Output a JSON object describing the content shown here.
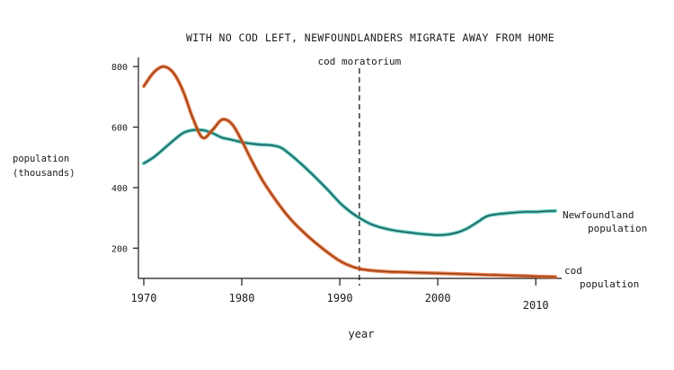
{
  "chart_data": {
    "type": "line",
    "title": "WITH NO COD LEFT, NEWFOUNDLANDERS MIGRATE AWAY FROM HOME",
    "xlabel": "year",
    "ylabel_lines": [
      "population",
      "(thousands)"
    ],
    "xlim": [
      1970,
      2012
    ],
    "ylim": [
      100,
      830
    ],
    "x_ticks": [
      {
        "value": 1970,
        "label": "1970"
      },
      {
        "value": 1980,
        "label": "1980"
      },
      {
        "value": 1990,
        "label": "1990"
      },
      {
        "value": 2000,
        "label": "2000"
      },
      {
        "value": 2010,
        "label": "2010"
      }
    ],
    "y_ticks": [
      {
        "value": 200,
        "label": "200"
      },
      {
        "value": 400,
        "label": "400"
      },
      {
        "value": 600,
        "label": "600"
      },
      {
        "value": 800,
        "label": "800"
      }
    ],
    "grid": false,
    "annotation": {
      "label": "cod moratorium",
      "x": 1992
    },
    "series": [
      {
        "label_lines": [
          "Newfoundland",
          "population"
        ],
        "color": "#3fbfae",
        "points": [
          [
            1970,
            480
          ],
          [
            1971,
            500
          ],
          [
            1972,
            527
          ],
          [
            1973,
            555
          ],
          [
            1974,
            580
          ],
          [
            1975,
            590
          ],
          [
            1976,
            590
          ],
          [
            1977,
            580
          ],
          [
            1978,
            565
          ],
          [
            1979,
            558
          ],
          [
            1980,
            550
          ],
          [
            1981,
            545
          ],
          [
            1982,
            542
          ],
          [
            1983,
            540
          ],
          [
            1984,
            532
          ],
          [
            1985,
            508
          ],
          [
            1986,
            480
          ],
          [
            1987,
            450
          ],
          [
            1988,
            418
          ],
          [
            1989,
            385
          ],
          [
            1990,
            350
          ],
          [
            1991,
            322
          ],
          [
            1992,
            300
          ],
          [
            1993,
            282
          ],
          [
            1994,
            270
          ],
          [
            1995,
            262
          ],
          [
            1996,
            256
          ],
          [
            1997,
            252
          ],
          [
            1998,
            248
          ],
          [
            1999,
            245
          ],
          [
            2000,
            243
          ],
          [
            2001,
            245
          ],
          [
            2002,
            252
          ],
          [
            2003,
            265
          ],
          [
            2004,
            285
          ],
          [
            2005,
            305
          ],
          [
            2006,
            312
          ],
          [
            2007,
            315
          ],
          [
            2008,
            318
          ],
          [
            2009,
            320
          ],
          [
            2010,
            320
          ],
          [
            2011,
            322
          ],
          [
            2012,
            323
          ]
        ]
      },
      {
        "label_lines": [
          "cod",
          "population"
        ],
        "color": "#e8692e",
        "points": [
          [
            1970,
            735
          ],
          [
            1971,
            780
          ],
          [
            1972,
            800
          ],
          [
            1973,
            780
          ],
          [
            1974,
            720
          ],
          [
            1975,
            630
          ],
          [
            1976,
            565
          ],
          [
            1977,
            590
          ],
          [
            1978,
            625
          ],
          [
            1979,
            610
          ],
          [
            1980,
            555
          ],
          [
            1981,
            490
          ],
          [
            1982,
            430
          ],
          [
            1983,
            380
          ],
          [
            1984,
            335
          ],
          [
            1985,
            295
          ],
          [
            1986,
            262
          ],
          [
            1987,
            232
          ],
          [
            1988,
            205
          ],
          [
            1989,
            180
          ],
          [
            1990,
            158
          ],
          [
            1991,
            142
          ],
          [
            1992,
            132
          ],
          [
            1993,
            127
          ],
          [
            1994,
            124
          ],
          [
            1995,
            122
          ],
          [
            1996,
            121
          ],
          [
            1997,
            120
          ],
          [
            1998,
            119
          ],
          [
            1999,
            118
          ],
          [
            2000,
            117
          ],
          [
            2001,
            116
          ],
          [
            2002,
            115
          ],
          [
            2003,
            114
          ],
          [
            2004,
            113
          ],
          [
            2005,
            112
          ],
          [
            2006,
            111
          ],
          [
            2007,
            110
          ],
          [
            2008,
            109
          ],
          [
            2009,
            108
          ],
          [
            2010,
            107
          ],
          [
            2011,
            106
          ],
          [
            2012,
            105
          ]
        ]
      }
    ]
  }
}
